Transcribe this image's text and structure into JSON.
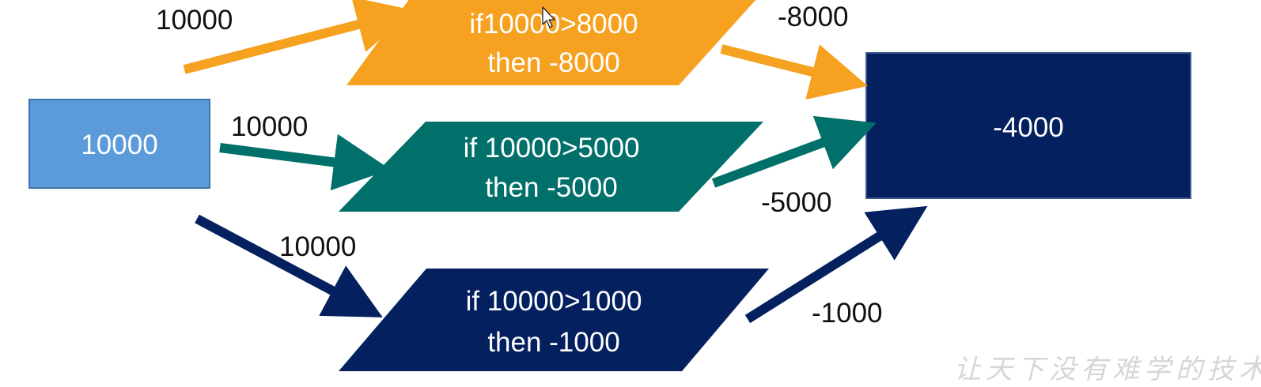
{
  "colors": {
    "orange": "#f6a120",
    "teal": "#01706a",
    "navy": "#04205e",
    "blue": "#5b9bd9",
    "text_dark": "#111111",
    "text_light": "#ffffff"
  },
  "diagram": {
    "source": {
      "label": "10000"
    },
    "conditions": [
      {
        "line1": "if10000>8000",
        "line2": "then  -8000"
      },
      {
        "line1": "if 10000>5000",
        "line2": "then -5000"
      },
      {
        "line1": "if 10000>1000",
        "line2": "then -1000"
      }
    ],
    "result": {
      "label": "-4000"
    },
    "input_labels": [
      "10000",
      "10000",
      "10000"
    ],
    "output_labels": [
      "-8000",
      "-5000",
      "-1000"
    ]
  },
  "watermark": "让天下没有难学的技术",
  "cursor_icon": "mouse-pointer-icon"
}
